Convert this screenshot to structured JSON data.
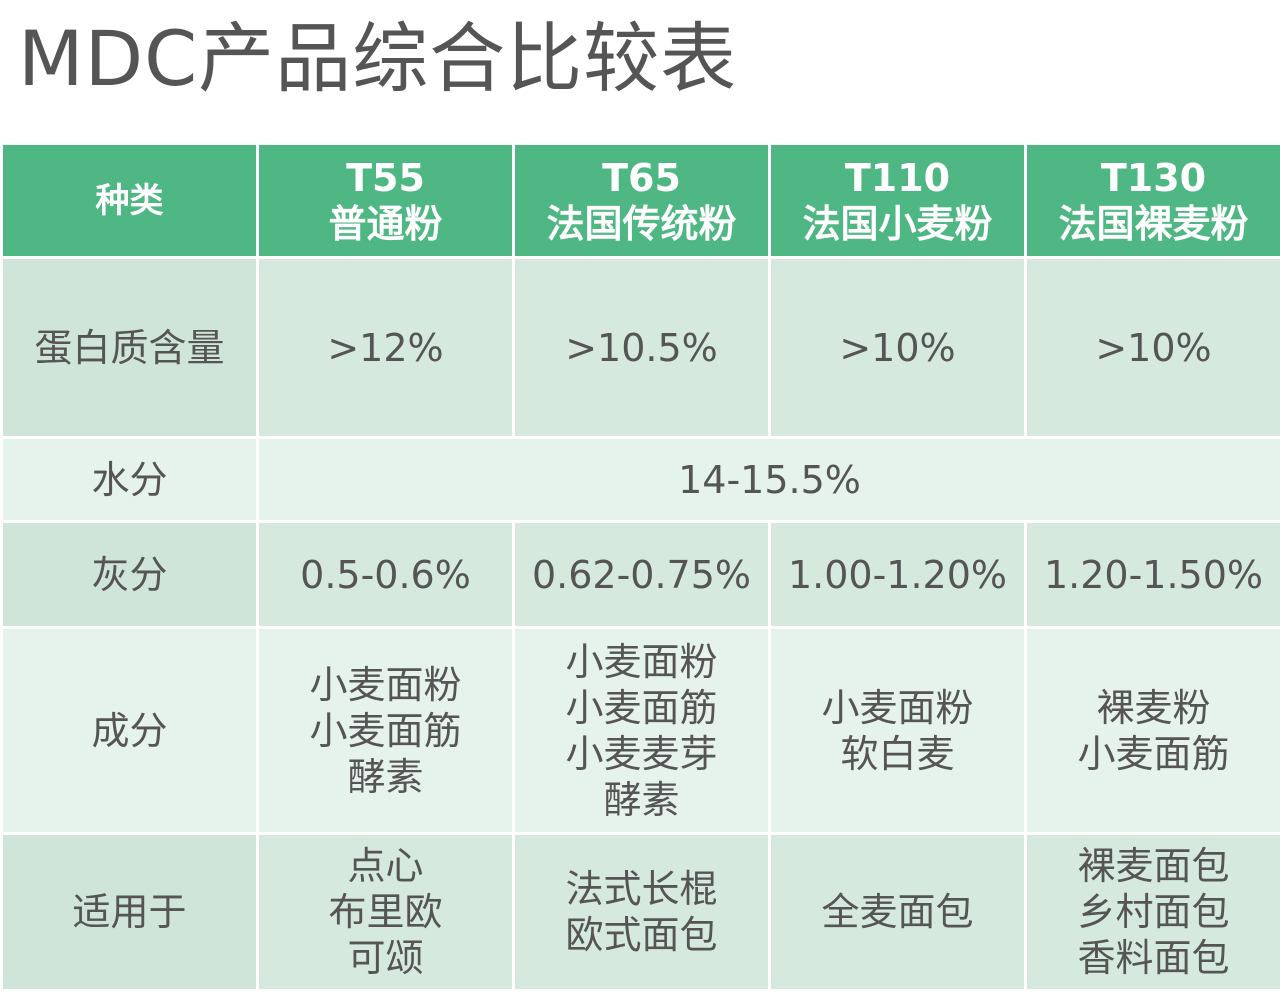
{
  "title": "MDC产品综合比较表",
  "header": {
    "category_label": "种类",
    "columns": [
      {
        "code": "T55",
        "name": "普通粉"
      },
      {
        "code": "T65",
        "name": "法国传统粉"
      },
      {
        "code": "T110",
        "name": "法国小麦粉"
      },
      {
        "code": "T130",
        "name": "法国裸麦粉"
      }
    ]
  },
  "rows": {
    "protein": {
      "label": "蛋白质含量",
      "values": [
        ">12%",
        ">10.5%",
        ">10%",
        ">10%"
      ]
    },
    "moisture": {
      "label": "水分",
      "value": "14-15.5%"
    },
    "ash": {
      "label": "灰分",
      "values": [
        "0.5-0.6%",
        "0.62-0.75%",
        "1.00-1.20%",
        "1.20-1.50%"
      ]
    },
    "ingredients": {
      "label": "成分",
      "values": [
        [
          "小麦面粉",
          "小麦面筋",
          "酵素"
        ],
        [
          "小麦面粉",
          "小麦面筋",
          "小麦麦芽",
          "酵素"
        ],
        [
          "小麦面粉",
          "软白麦"
        ],
        [
          "裸麦粉",
          "小麦面筋"
        ]
      ]
    },
    "usage": {
      "label": "适用于",
      "values": [
        [
          "点心",
          "布里欧",
          "可颂"
        ],
        [
          "法式长棍",
          "欧式面包"
        ],
        [
          "全麦面包"
        ],
        [
          "裸麦面包",
          "乡村面包",
          "香料面包"
        ]
      ]
    }
  }
}
